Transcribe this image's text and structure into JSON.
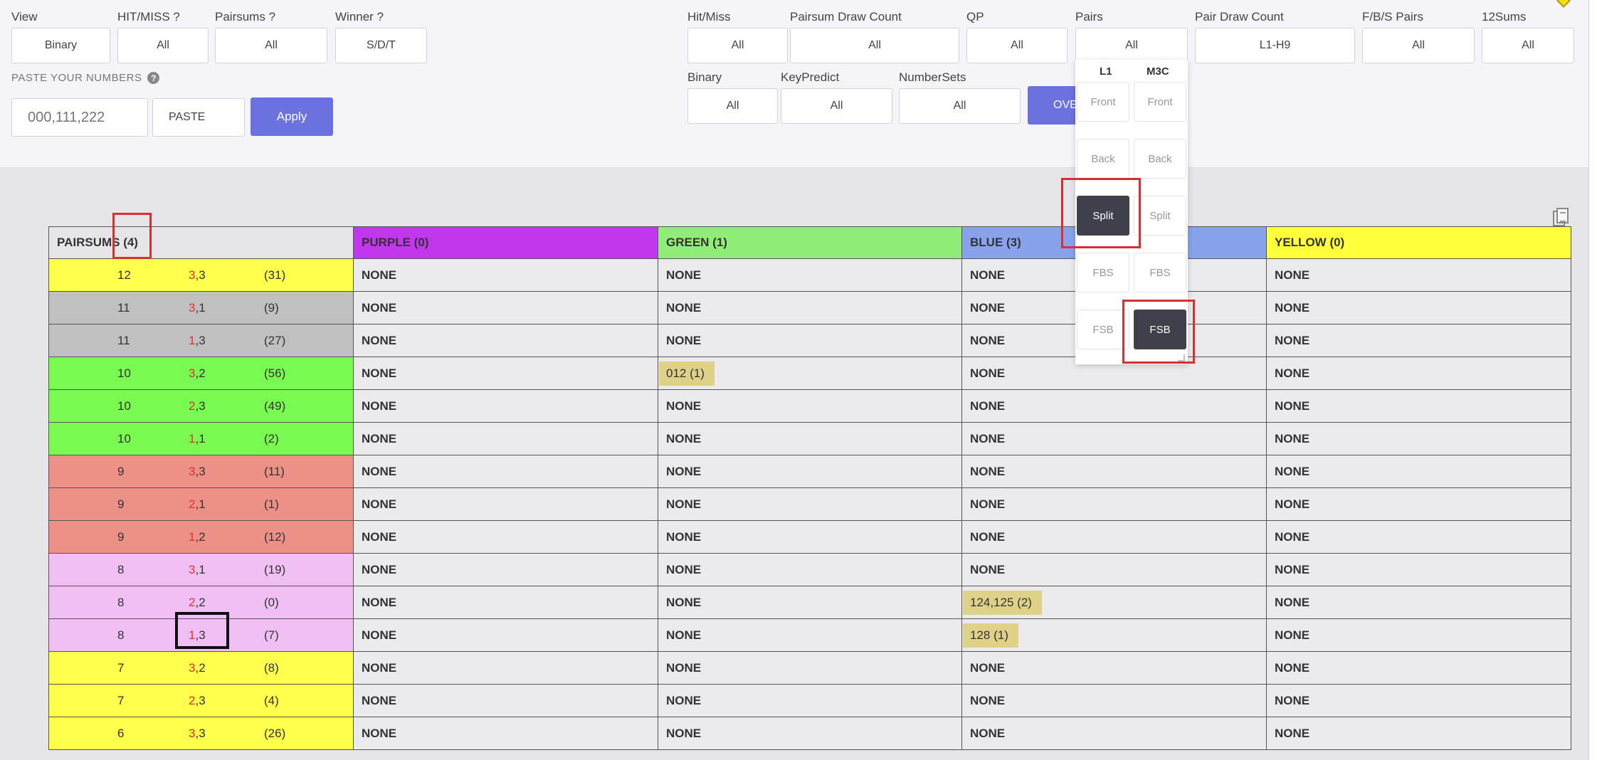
{
  "filters_left": [
    {
      "label": "View",
      "value": "Binary"
    },
    {
      "label": "HIT/MISS ?",
      "value": "All"
    },
    {
      "label": "Pairsums ?",
      "value": "All"
    },
    {
      "label": "Winner ?",
      "value": "S/D/T"
    }
  ],
  "paste": {
    "label": "PASTE YOUR NUMBERS",
    "input_placeholder": "000,111,222",
    "paste_button": "PASTE",
    "apply_button": "Apply"
  },
  "filters_right_row1": [
    {
      "label": "Hit/Miss",
      "value": "All"
    },
    {
      "label": "Pairsum Draw Count",
      "value": "All"
    },
    {
      "label": "QP",
      "value": "All"
    },
    {
      "label": "Pairs",
      "value": "All"
    },
    {
      "label": "Pair Draw Count",
      "value": "L1-H9"
    },
    {
      "label": "F/B/S Pairs",
      "value": "All"
    },
    {
      "label": "12Sums",
      "value": "All"
    }
  ],
  "filters_right_row2": [
    {
      "label": "Binary",
      "value": "All"
    },
    {
      "label": "KeyPredict",
      "value": "All"
    },
    {
      "label": "NumberSets",
      "value": "All"
    }
  ],
  "over_button": "OVE",
  "pairs_dropdown": {
    "col1_title": "L1",
    "col2_title": "M3C",
    "col1_options": [
      "Front",
      "Back",
      "Split",
      "FBS",
      "FSB"
    ],
    "col2_options": [
      "Front",
      "Back",
      "Split",
      "FBS",
      "FSB"
    ],
    "col1_active": "Split",
    "col2_active": "FSB"
  },
  "table": {
    "headers": [
      "PAIRSUMS (4)",
      "PURPLE (0)",
      "GREEN (1)",
      "BLUE (3)",
      "YELLOW (0)"
    ],
    "header_colors": [
      "#e6e6ea",
      "#c236ee",
      "#90ee78",
      "#88a3ec",
      "#ffff3c"
    ],
    "rows": [
      {
        "sum": "12",
        "pair_a": "3",
        "pair_b": ",3",
        "count": "(31)",
        "color": "#ffff4c",
        "purple": "NONE",
        "green": "NONE",
        "blue": "NONE",
        "yellow": "NONE"
      },
      {
        "sum": "11",
        "pair_a": "3",
        "pair_b": ",1",
        "count": "(9)",
        "color": "#c0c0c0",
        "purple": "NONE",
        "green": "NONE",
        "blue": "NONE",
        "yellow": "NONE"
      },
      {
        "sum": "11",
        "pair_a": "1",
        "pair_b": ",3",
        "count": "(27)",
        "color": "#c0c0c0",
        "purple": "NONE",
        "green": "NONE",
        "blue": "NONE",
        "yellow": "NONE"
      },
      {
        "sum": "10",
        "pair_a": "3",
        "pair_b": ",2",
        "count": "(56)",
        "color": "#78fa50",
        "purple": "NONE",
        "green": "012 (1)",
        "blue": "NONE",
        "yellow": "NONE"
      },
      {
        "sum": "10",
        "pair_a": "2",
        "pair_b": ",3",
        "count": "(49)",
        "color": "#78fa50",
        "purple": "NONE",
        "green": "NONE",
        "blue": "NONE",
        "yellow": "NONE"
      },
      {
        "sum": "10",
        "pair_a": "1",
        "pair_b": ",1",
        "count": "(2)",
        "color": "#78fa50",
        "purple": "NONE",
        "green": "NONE",
        "blue": "NONE",
        "yellow": "NONE"
      },
      {
        "sum": "9",
        "pair_a": "3",
        "pair_b": ",3",
        "count": "(11)",
        "color": "#ec9088",
        "purple": "NONE",
        "green": "NONE",
        "blue": "NONE",
        "yellow": "NONE"
      },
      {
        "sum": "9",
        "pair_a": "2",
        "pair_b": ",1",
        "count": "(1)",
        "color": "#ec9088",
        "purple": "NONE",
        "green": "NONE",
        "blue": "NONE",
        "yellow": "NONE"
      },
      {
        "sum": "9",
        "pair_a": "1",
        "pair_b": ",2",
        "count": "(12)",
        "color": "#ec9088",
        "purple": "NONE",
        "green": "NONE",
        "blue": "NONE",
        "yellow": "NONE"
      },
      {
        "sum": "8",
        "pair_a": "3",
        "pair_b": ",1",
        "count": "(19)",
        "color": "#f0c0f4",
        "purple": "NONE",
        "green": "NONE",
        "blue": "NONE",
        "yellow": "NONE"
      },
      {
        "sum": "8",
        "pair_a": "2",
        "pair_b": ",2",
        "count": "(0)",
        "color": "#f0c0f4",
        "purple": "NONE",
        "green": "NONE",
        "blue": "124,125 (2)",
        "yellow": "NONE"
      },
      {
        "sum": "8",
        "pair_a": "1",
        "pair_b": ",3",
        "count": "(7)",
        "color": "#f0c0f4",
        "purple": "NONE",
        "green": "NONE",
        "blue": "128 (1)",
        "yellow": "NONE"
      },
      {
        "sum": "7",
        "pair_a": "3",
        "pair_b": ",2",
        "count": "(8)",
        "color": "#ffff4c",
        "purple": "NONE",
        "green": "NONE",
        "blue": "NONE",
        "yellow": "NONE"
      },
      {
        "sum": "7",
        "pair_a": "2",
        "pair_b": ",3",
        "count": "(4)",
        "color": "#ffff4c",
        "purple": "NONE",
        "green": "NONE",
        "blue": "NONE",
        "yellow": "NONE"
      },
      {
        "sum": "6",
        "pair_a": "3",
        "pair_b": ",3",
        "count": "(26)",
        "color": "#ffff4c",
        "purple": "NONE",
        "green": "NONE",
        "blue": "NONE",
        "yellow": "NONE"
      }
    ]
  }
}
